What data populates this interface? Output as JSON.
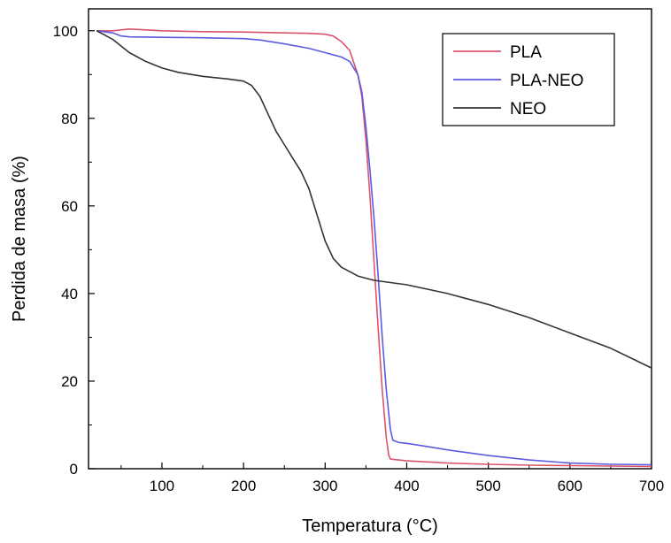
{
  "chart_data": {
    "type": "line",
    "xlabel": "Temperatura (°C)",
    "ylabel": "Perdida de masa (%)",
    "xlim": [
      10,
      700
    ],
    "ylim": [
      0,
      105
    ],
    "xticks": [
      100,
      200,
      300,
      400,
      500,
      600,
      700
    ],
    "yticks": [
      0,
      20,
      40,
      60,
      80,
      100
    ],
    "grid": false,
    "legend_position": "top-right",
    "series": [
      {
        "name": "PLA",
        "color": "#d9546b",
        "points": [
          [
            20,
            100
          ],
          [
            40,
            100
          ],
          [
            60,
            100.4
          ],
          [
            100,
            100
          ],
          [
            150,
            99.8
          ],
          [
            200,
            99.7
          ],
          [
            250,
            99.5
          ],
          [
            280,
            99.4
          ],
          [
            300,
            99.2
          ],
          [
            310,
            98.8
          ],
          [
            320,
            97.5
          ],
          [
            330,
            95.5
          ],
          [
            340,
            90
          ],
          [
            345,
            85
          ],
          [
            350,
            75
          ],
          [
            355,
            62
          ],
          [
            360,
            47
          ],
          [
            365,
            32
          ],
          [
            370,
            18
          ],
          [
            375,
            7
          ],
          [
            378,
            3
          ],
          [
            380,
            2.2
          ],
          [
            400,
            1.8
          ],
          [
            450,
            1.3
          ],
          [
            500,
            1
          ],
          [
            550,
            0.8
          ],
          [
            600,
            0.7
          ],
          [
            650,
            0.6
          ],
          [
            700,
            0.5
          ]
        ]
      },
      {
        "name": "PLA-NEO",
        "color": "#5b5be0",
        "points": [
          [
            20,
            100
          ],
          [
            40,
            99.5
          ],
          [
            50,
            98.8
          ],
          [
            60,
            98.6
          ],
          [
            100,
            98.5
          ],
          [
            150,
            98.4
          ],
          [
            200,
            98.2
          ],
          [
            220,
            97.9
          ],
          [
            250,
            97
          ],
          [
            280,
            96
          ],
          [
            300,
            95
          ],
          [
            320,
            94
          ],
          [
            330,
            93
          ],
          [
            340,
            90
          ],
          [
            345,
            86
          ],
          [
            350,
            78
          ],
          [
            355,
            68
          ],
          [
            360,
            57
          ],
          [
            365,
            44
          ],
          [
            370,
            30
          ],
          [
            375,
            18
          ],
          [
            380,
            9
          ],
          [
            383,
            6.5
          ],
          [
            390,
            6
          ],
          [
            400,
            5.8
          ],
          [
            420,
            5.2
          ],
          [
            450,
            4.3
          ],
          [
            500,
            3
          ],
          [
            550,
            2
          ],
          [
            600,
            1.3
          ],
          [
            650,
            1
          ],
          [
            700,
            0.9
          ]
        ]
      },
      {
        "name": "NEO",
        "color": "#333333",
        "points": [
          [
            20,
            100
          ],
          [
            30,
            99
          ],
          [
            40,
            98
          ],
          [
            50,
            96.5
          ],
          [
            60,
            95
          ],
          [
            80,
            93
          ],
          [
            100,
            91.5
          ],
          [
            120,
            90.5
          ],
          [
            150,
            89.6
          ],
          [
            180,
            89
          ],
          [
            200,
            88.5
          ],
          [
            210,
            87.5
          ],
          [
            220,
            85
          ],
          [
            230,
            81
          ],
          [
            240,
            77
          ],
          [
            250,
            74
          ],
          [
            260,
            71
          ],
          [
            270,
            68
          ],
          [
            280,
            64
          ],
          [
            290,
            58
          ],
          [
            300,
            52
          ],
          [
            310,
            48
          ],
          [
            320,
            46
          ],
          [
            330,
            45
          ],
          [
            340,
            44
          ],
          [
            350,
            43.5
          ],
          [
            360,
            43
          ],
          [
            380,
            42.5
          ],
          [
            400,
            42
          ],
          [
            450,
            40
          ],
          [
            500,
            37.5
          ],
          [
            550,
            34.5
          ],
          [
            600,
            31
          ],
          [
            650,
            27.5
          ],
          [
            700,
            23
          ]
        ]
      }
    ]
  }
}
